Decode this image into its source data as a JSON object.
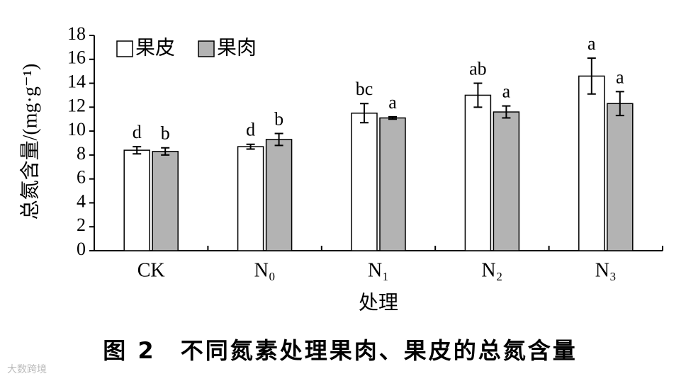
{
  "chart_data": {
    "type": "bar",
    "y_label": "总氮含量/(mg·g⁻¹)",
    "x_label": "处理",
    "caption": "图 2　不同氮素处理果肉、果皮的总氮含量",
    "watermark": "大数跨境",
    "categories": [
      "CK",
      "N₀",
      "N₁",
      "N₂",
      "N₃"
    ],
    "series": [
      {
        "name": "果皮",
        "color": "#ffffff",
        "values": [
          8.4,
          8.7,
          11.5,
          13.0,
          14.6
        ],
        "errors": [
          0.3,
          0.2,
          0.8,
          1.0,
          1.5
        ],
        "letters": [
          "d",
          "d",
          "bc",
          "ab",
          "a"
        ]
      },
      {
        "name": "果肉",
        "color": "#b3b3b3",
        "values": [
          8.3,
          9.3,
          11.1,
          11.6,
          12.3
        ],
        "errors": [
          0.3,
          0.5,
          0.1,
          0.5,
          1.0
        ],
        "letters": [
          "b",
          "b",
          "a",
          "a",
          "a"
        ]
      }
    ],
    "ylim": [
      0,
      18
    ],
    "yticks": [
      0,
      2,
      4,
      6,
      8,
      10,
      12,
      14,
      16,
      18
    ],
    "legend": "top-left"
  }
}
